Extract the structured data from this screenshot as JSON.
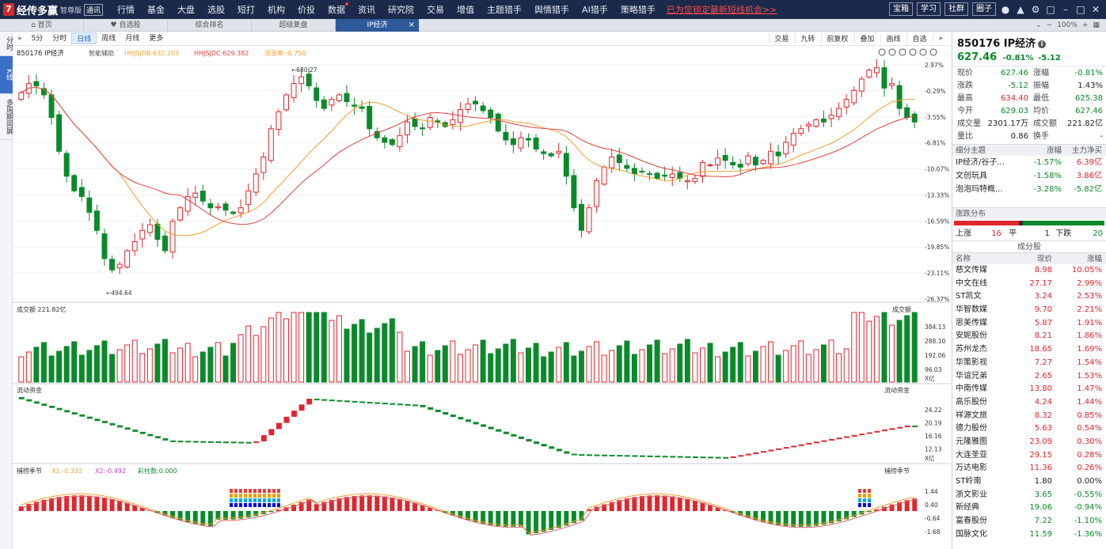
{
  "app": {
    "logo_mark": "7",
    "name": "经传多赢",
    "edition": "智尊版",
    "version_badge": "通讯",
    "menu": [
      "行情",
      "基金",
      "大盘",
      "选股",
      "短打",
      "机构",
      "价投",
      "数据",
      "资讯",
      "研究院",
      "交易",
      "增值",
      "主题猎手",
      "舆情猎手",
      "AI猎手",
      "策略猎手"
    ],
    "menu_dot_index": 7,
    "promo": "已为您锁定最新短线机会>>",
    "right_buttons": [
      "宝箱",
      "学习",
      "社群",
      "圈子"
    ]
  },
  "tabs": [
    {
      "label": "首页",
      "icon": "home-icon"
    },
    {
      "label": "自选股",
      "icon": "heart-icon"
    },
    {
      "label": "综合排名",
      "icon": ""
    },
    {
      "label": "超级复盘",
      "icon": ""
    },
    {
      "label": "IP经济",
      "icon": "",
      "active": true
    }
  ],
  "zoom": {
    "level": "100%"
  },
  "left_strip": [
    "分时",
    "K线",
    "多周期同屏"
  ],
  "toolbar": {
    "left": [
      "5分",
      "分时",
      "日线",
      "周线",
      "月线",
      "更多"
    ],
    "selected": "日线",
    "right": [
      "交易",
      "九转",
      "前复权",
      "叠加",
      "画线",
      "自选"
    ]
  },
  "chart_header": {
    "code_name": "850176 IP经济",
    "assist": "智能辅助",
    "ma1": "HHJSJDB:632.203",
    "ma2": "HHJSJDC:629.382",
    "ratio": "领涨率:-0.750",
    "vol_label": "成交额  221.82亿",
    "vol_label_right": "成交额",
    "flow_label": "流动资金",
    "flow_label_right": "流动资金",
    "season_label": "捕捞季节",
    "x1": "X1:-0.332",
    "x2": "X2:-0.492",
    "bars": "彩柱数:0.000",
    "season_label_right": "捕捞季节"
  },
  "chart_data": [
    {
      "type": "candlestick",
      "title": "850176 IP经济",
      "yaxis_ticks": [
        "2.97%",
        "-0.29%",
        "-3.55%",
        "-6.81%",
        "-10.07%",
        "-13.33%",
        "-16.59%",
        "-19.85%",
        "-23.11%",
        "-26.37%"
      ],
      "high_label": "680.27",
      "low_label": "494.64",
      "closes": [
        662,
        670,
        668,
        660,
        640,
        610,
        588,
        575,
        570,
        556,
        540,
        515,
        505,
        510,
        522,
        530,
        540,
        545,
        532,
        522,
        548,
        560,
        570,
        573,
        566,
        560,
        561,
        558,
        555,
        560,
        575,
        590,
        605,
        630,
        645,
        660,
        670,
        676,
        668,
        655,
        648,
        656,
        660,
        654,
        650,
        648,
        630,
        622,
        618,
        616,
        624,
        636,
        632,
        630,
        640,
        636,
        632,
        638,
        647,
        652,
        652,
        646,
        640,
        628,
        620,
        616,
        622,
        620,
        612,
        608,
        606,
        610,
        588,
        560,
        540,
        560,
        584,
        596,
        605,
        600,
        595,
        590,
        592,
        590,
        586,
        588,
        590,
        586,
        584,
        586,
        600,
        598,
        604,
        602,
        598,
        596,
        606,
        598,
        602,
        610,
        606,
        618,
        626,
        630,
        634,
        638,
        636,
        642,
        648,
        656,
        664,
        674,
        682,
        684,
        666,
        670,
        648,
        640,
        636
      ]
    },
    {
      "type": "bar",
      "title": "成交额",
      "yaxis_ticks": [
        "384.13",
        "288.10",
        "192.06",
        "96.03"
      ],
      "yunit": "X亿"
    },
    {
      "type": "line",
      "title": "流动资金",
      "yaxis_ticks": [
        "24.22",
        "20.19",
        "16.16",
        "12.13"
      ],
      "yunit": "X亿"
    },
    {
      "type": "bar",
      "title": "捕捞季节",
      "yaxis_ticks": [
        "1.44",
        "0.40",
        "-0.64",
        "-1.68"
      ]
    }
  ],
  "quote": {
    "name": "850176 IP经济",
    "price": "627.46",
    "change_pct": "-0.81%",
    "change": "-5.12",
    "rows": [
      {
        "l1": "现价",
        "v1": "627.46",
        "c1": "grn",
        "l2": "涨幅",
        "v2": "-0.81%",
        "c2": "grn"
      },
      {
        "l1": "涨跌",
        "v1": "-5.12",
        "c1": "grn",
        "l2": "振幅",
        "v2": "1.43%",
        "c2": ""
      },
      {
        "l1": "最高",
        "v1": "634.40",
        "c1": "red",
        "l2": "最低",
        "v2": "625.38",
        "c2": "grn"
      },
      {
        "l1": "今开",
        "v1": "629.03",
        "c1": "grn",
        "l2": "均价",
        "v2": "627.46",
        "c2": "grn"
      },
      {
        "l1": "成交量",
        "v1": "2301.17万",
        "c1": "",
        "l2": "成交额",
        "v2": "221.82亿",
        "c2": ""
      },
      {
        "l1": "量比",
        "v1": "0.86",
        "c1": "",
        "l2": "换手",
        "v2": "-",
        "c2": ""
      }
    ]
  },
  "themes": {
    "headers": [
      "细分主题",
      "涨幅",
      "主力净买"
    ],
    "rows": [
      {
        "name": "IP经济/谷子...",
        "pct": "-1.57%",
        "flow": "6.39亿"
      },
      {
        "name": "文创玩具",
        "pct": "-1.58%",
        "flow": "3.86亿"
      },
      {
        "name": "泡泡玛特概...",
        "pct": "-3.28%",
        "flow": "-5.82亿"
      }
    ]
  },
  "distribution": {
    "title": "涨跌分布",
    "up_label": "上涨",
    "up": 16,
    "flat_label": "平",
    "flat": 1,
    "down_label": "下跌",
    "down": 20
  },
  "components": {
    "title": "成分股",
    "headers": [
      "名称",
      "现价",
      "涨幅"
    ],
    "rows": [
      {
        "name": "慈文传媒",
        "price": "8.98",
        "pct": "10.05%"
      },
      {
        "name": "中文在线",
        "price": "27.17",
        "pct": "2.99%"
      },
      {
        "name": "ST凯文",
        "price": "3.24",
        "pct": "2.53%"
      },
      {
        "name": "华智数媒",
        "price": "9.70",
        "pct": "2.21%"
      },
      {
        "name": "思美传媒",
        "price": "5.87",
        "pct": "1.91%"
      },
      {
        "name": "安妮股份",
        "price": "8.21",
        "pct": "1.86%"
      },
      {
        "name": "苏州龙杰",
        "price": "18.65",
        "pct": "1.69%"
      },
      {
        "name": "华策影视",
        "price": "7.27",
        "pct": "1.54%"
      },
      {
        "name": "华谊兄弟",
        "price": "2.65",
        "pct": "1.53%"
      },
      {
        "name": "中南传媒",
        "price": "13.80",
        "pct": "1.47%"
      },
      {
        "name": "高乐股份",
        "price": "4.24",
        "pct": "1.44%"
      },
      {
        "name": "祥源文旅",
        "price": "8.32",
        "pct": "0.85%"
      },
      {
        "name": "德力股份",
        "price": "5.63",
        "pct": "0.54%"
      },
      {
        "name": "元隆雅图",
        "price": "23.09",
        "pct": "0.30%"
      },
      {
        "name": "大连圣亚",
        "price": "29.15",
        "pct": "0.28%"
      },
      {
        "name": "万达电影",
        "price": "11.36",
        "pct": "0.26%"
      },
      {
        "name": "ST岭南",
        "price": "1.80",
        "pct": "0.00%"
      },
      {
        "name": "浙文影业",
        "price": "3.65",
        "pct": "-0.55%"
      },
      {
        "name": "新经典",
        "price": "19.06",
        "pct": "-0.94%"
      },
      {
        "name": "富春股份",
        "price": "7.22",
        "pct": "-1.10%"
      },
      {
        "name": "国脉文化",
        "price": "11.59",
        "pct": "-1.36%"
      }
    ]
  },
  "colors": {
    "up": "#e0262e",
    "down": "#0a8a2a",
    "ma_orange": "#f0a030",
    "ma_red": "#e04040"
  }
}
